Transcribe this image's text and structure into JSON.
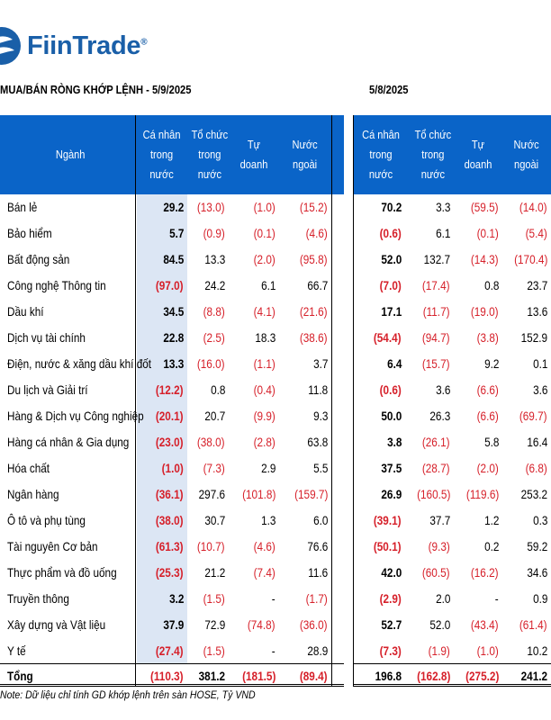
{
  "brand": {
    "name": "FiinTrade",
    "reg": "®"
  },
  "titles": {
    "left": "MUA/BÁN RÒNG KHỚP LỆNH - 5/9/2025",
    "right": "5/8/2025"
  },
  "table": {
    "headers_left": [
      "Ngành",
      "Cá nhân\ntrong\nnước",
      "Tổ chức\ntrong\nnước",
      "Tự doanh",
      "Nước\nngoài"
    ],
    "headers_right": [
      "Cá nhân\ntrong nước",
      "Tổ chức\ntrong\nnước",
      "Tự doanh",
      "Nước\nngoài"
    ],
    "rows": [
      {
        "name": "Bán lẻ",
        "left": [
          "29.2",
          "(13.0)",
          "(1.0)",
          "(15.2)"
        ],
        "right": [
          "70.2",
          "3.3",
          "(59.5)",
          "(14.0)"
        ]
      },
      {
        "name": "Bảo hiểm",
        "left": [
          "5.7",
          "(0.9)",
          "(0.1)",
          "(4.6)"
        ],
        "right": [
          "(0.6)",
          "6.1",
          "(0.1)",
          "(5.4)"
        ]
      },
      {
        "name": "Bất động sản",
        "left": [
          "84.5",
          "13.3",
          "(2.0)",
          "(95.8)"
        ],
        "right": [
          "52.0",
          "132.7",
          "(14.3)",
          "(170.4)"
        ]
      },
      {
        "name": "Công nghệ Thông tin",
        "left": [
          "(97.0)",
          "24.2",
          "6.1",
          "66.7"
        ],
        "right": [
          "(7.0)",
          "(17.4)",
          "0.8",
          "23.7"
        ]
      },
      {
        "name": "Dầu khí",
        "left": [
          "34.5",
          "(8.8)",
          "(4.1)",
          "(21.6)"
        ],
        "right": [
          "17.1",
          "(11.7)",
          "(19.0)",
          "13.6"
        ]
      },
      {
        "name": "Dịch vụ tài chính",
        "left": [
          "22.8",
          "(2.5)",
          "18.3",
          "(38.6)"
        ],
        "right": [
          "(54.4)",
          "(94.7)",
          "(3.8)",
          "152.9"
        ]
      },
      {
        "name": "Điện, nước & xăng dầu khí đốt",
        "left": [
          "13.3",
          "(16.0)",
          "(1.1)",
          "3.7"
        ],
        "right": [
          "6.4",
          "(15.7)",
          "9.2",
          "0.1"
        ]
      },
      {
        "name": "Du lịch và Giải trí",
        "left": [
          "(12.2)",
          "0.8",
          "(0.4)",
          "11.8"
        ],
        "right": [
          "(0.6)",
          "3.6",
          "(6.6)",
          "3.6"
        ]
      },
      {
        "name": "Hàng & Dịch vụ Công nghiệp",
        "left": [
          "(20.1)",
          "20.7",
          "(9.9)",
          "9.3"
        ],
        "right": [
          "50.0",
          "26.3",
          "(6.6)",
          "(69.7)"
        ]
      },
      {
        "name": "Hàng cá nhân & Gia dụng",
        "left": [
          "(23.0)",
          "(38.0)",
          "(2.8)",
          "63.8"
        ],
        "right": [
          "3.8",
          "(26.1)",
          "5.8",
          "16.4"
        ]
      },
      {
        "name": "Hóa chất",
        "left": [
          "(1.0)",
          "(7.3)",
          "2.9",
          "5.5"
        ],
        "right": [
          "37.5",
          "(28.7)",
          "(2.0)",
          "(6.8)"
        ]
      },
      {
        "name": "Ngân hàng",
        "left": [
          "(36.1)",
          "297.6",
          "(101.8)",
          "(159.7)"
        ],
        "right": [
          "26.9",
          "(160.5)",
          "(119.6)",
          "253.2"
        ]
      },
      {
        "name": "Ô tô và phụ tùng",
        "left": [
          "(38.0)",
          "30.7",
          "1.3",
          "6.0"
        ],
        "right": [
          "(39.1)",
          "37.7",
          "1.2",
          "0.3"
        ]
      },
      {
        "name": "Tài nguyên Cơ bản",
        "left": [
          "(61.3)",
          "(10.7)",
          "(4.6)",
          "76.6"
        ],
        "right": [
          "(50.1)",
          "(9.3)",
          "0.2",
          "59.2"
        ]
      },
      {
        "name": "Thực phẩm và đồ uống",
        "left": [
          "(25.3)",
          "21.2",
          "(7.4)",
          "11.6"
        ],
        "right": [
          "42.0",
          "(60.5)",
          "(16.2)",
          "34.6"
        ]
      },
      {
        "name": "Truyền thông",
        "left": [
          "3.2",
          "(1.5)",
          "-",
          "(1.7)"
        ],
        "right": [
          "(2.9)",
          "2.0",
          "-",
          "0.9"
        ]
      },
      {
        "name": "Xây dựng và Vật liệu",
        "left": [
          "37.9",
          "72.9",
          "(74.8)",
          "(36.0)"
        ],
        "right": [
          "52.7",
          "52.0",
          "(43.4)",
          "(61.4)"
        ]
      },
      {
        "name": "Y tế",
        "left": [
          "(27.4)",
          "(1.5)",
          "-",
          "28.9"
        ],
        "right": [
          "(7.3)",
          "(1.9)",
          "(1.0)",
          "10.2"
        ]
      }
    ],
    "total": {
      "name": "Tổng",
      "left": [
        "(110.3)",
        "381.2",
        "(181.5)",
        "(89.4)"
      ],
      "right": [
        "196.8",
        "(162.8)",
        "(275.2)",
        "241.2"
      ]
    }
  },
  "note": "Note: Dữ liệu chỉ tính GD khớp lệnh trên sàn HOSE, Tỷ VND",
  "colors": {
    "header_bg": "#0a64c8",
    "highlight_col": "#dce6f4",
    "negative": "#d6202a",
    "brand": "#1a5fa8"
  }
}
